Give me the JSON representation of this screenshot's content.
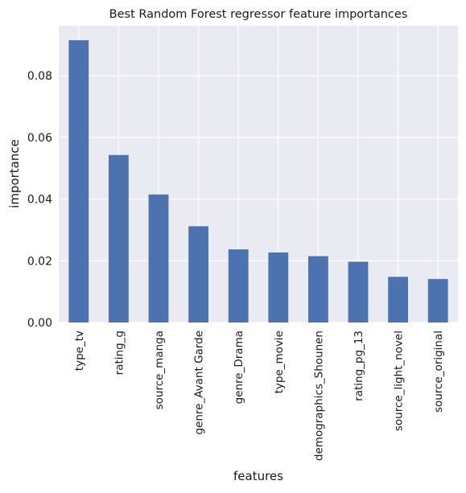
{
  "chart_data": {
    "type": "bar",
    "title": "Best Random Forest regressor feature importances",
    "xlabel": "features",
    "ylabel": "importance",
    "categories": [
      "type_tv",
      "rating_g",
      "source_manga",
      "genre_Avant Garde",
      "genre_Drama",
      "type_movie",
      "demographics_Shounen",
      "rating_pg_13",
      "source_light_novel",
      "source_original"
    ],
    "values": [
      0.0915,
      0.0543,
      0.0415,
      0.0312,
      0.0237,
      0.0227,
      0.0215,
      0.0197,
      0.0148,
      0.0141
    ],
    "ylim": [
      0,
      0.0962
    ],
    "yticks": [
      0.0,
      0.02,
      0.04,
      0.06,
      0.08
    ],
    "ytick_labels": [
      "0.00",
      "0.02",
      "0.04",
      "0.06",
      "0.08"
    ],
    "grid": true,
    "legend": "none",
    "colors": {
      "bar": "#4c72b0",
      "plot_background": "#eaeaf2",
      "grid": "#ffffff"
    }
  }
}
